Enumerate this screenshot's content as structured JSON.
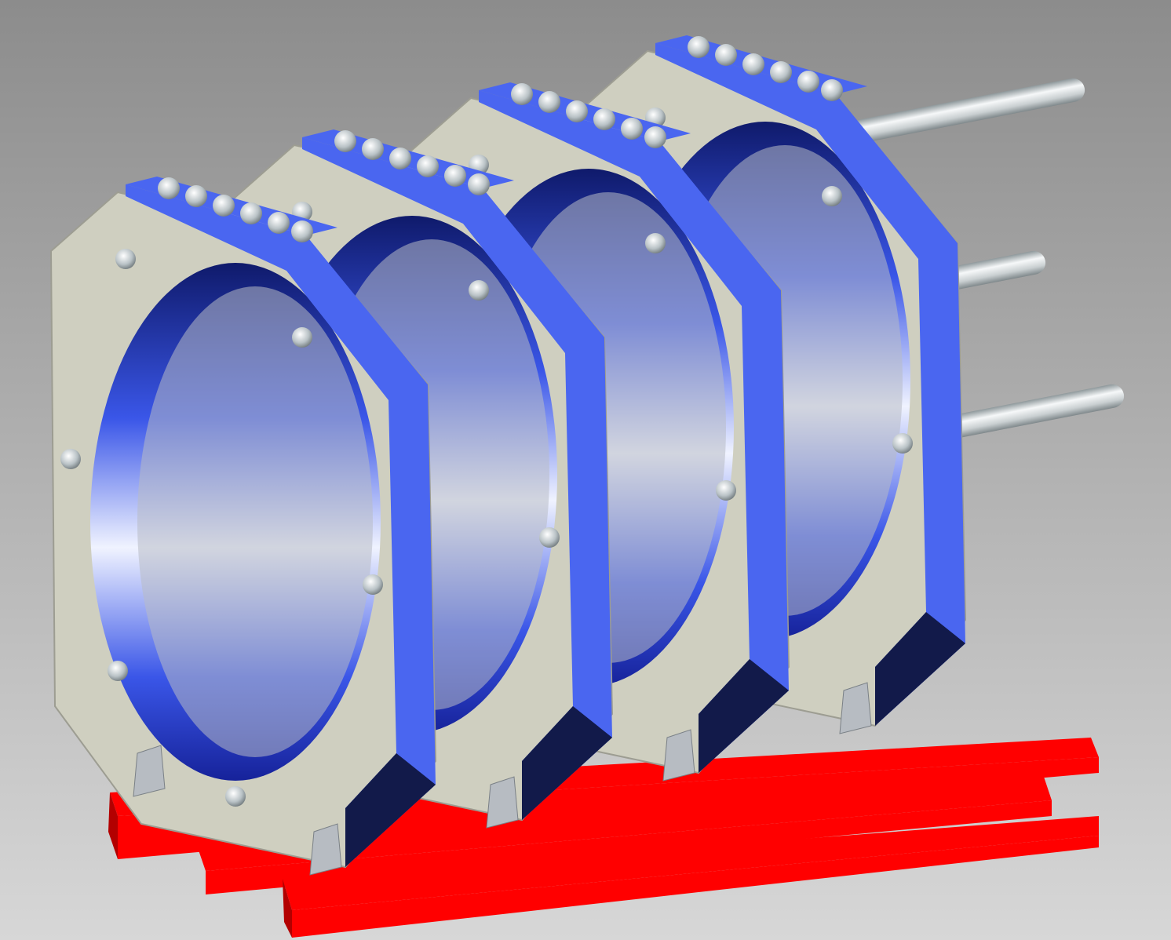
{
  "scene": {
    "subject": "cad-model-ring-frame-assembly",
    "ring_frame_count": 4,
    "colors": {
      "background_top": "#8c8c8c",
      "background_bottom": "#d7d7d7",
      "frame_face": "#cfcfc0",
      "frame_edge": "#9d9d92",
      "plate_blue": "#4a66f0",
      "plate_dark": "#121a4a",
      "base_beam": "#ff0000",
      "base_beam_dark": "#b30000",
      "rod_light": "#f2f4f5",
      "rod_dark": "#9aa3a6"
    }
  }
}
